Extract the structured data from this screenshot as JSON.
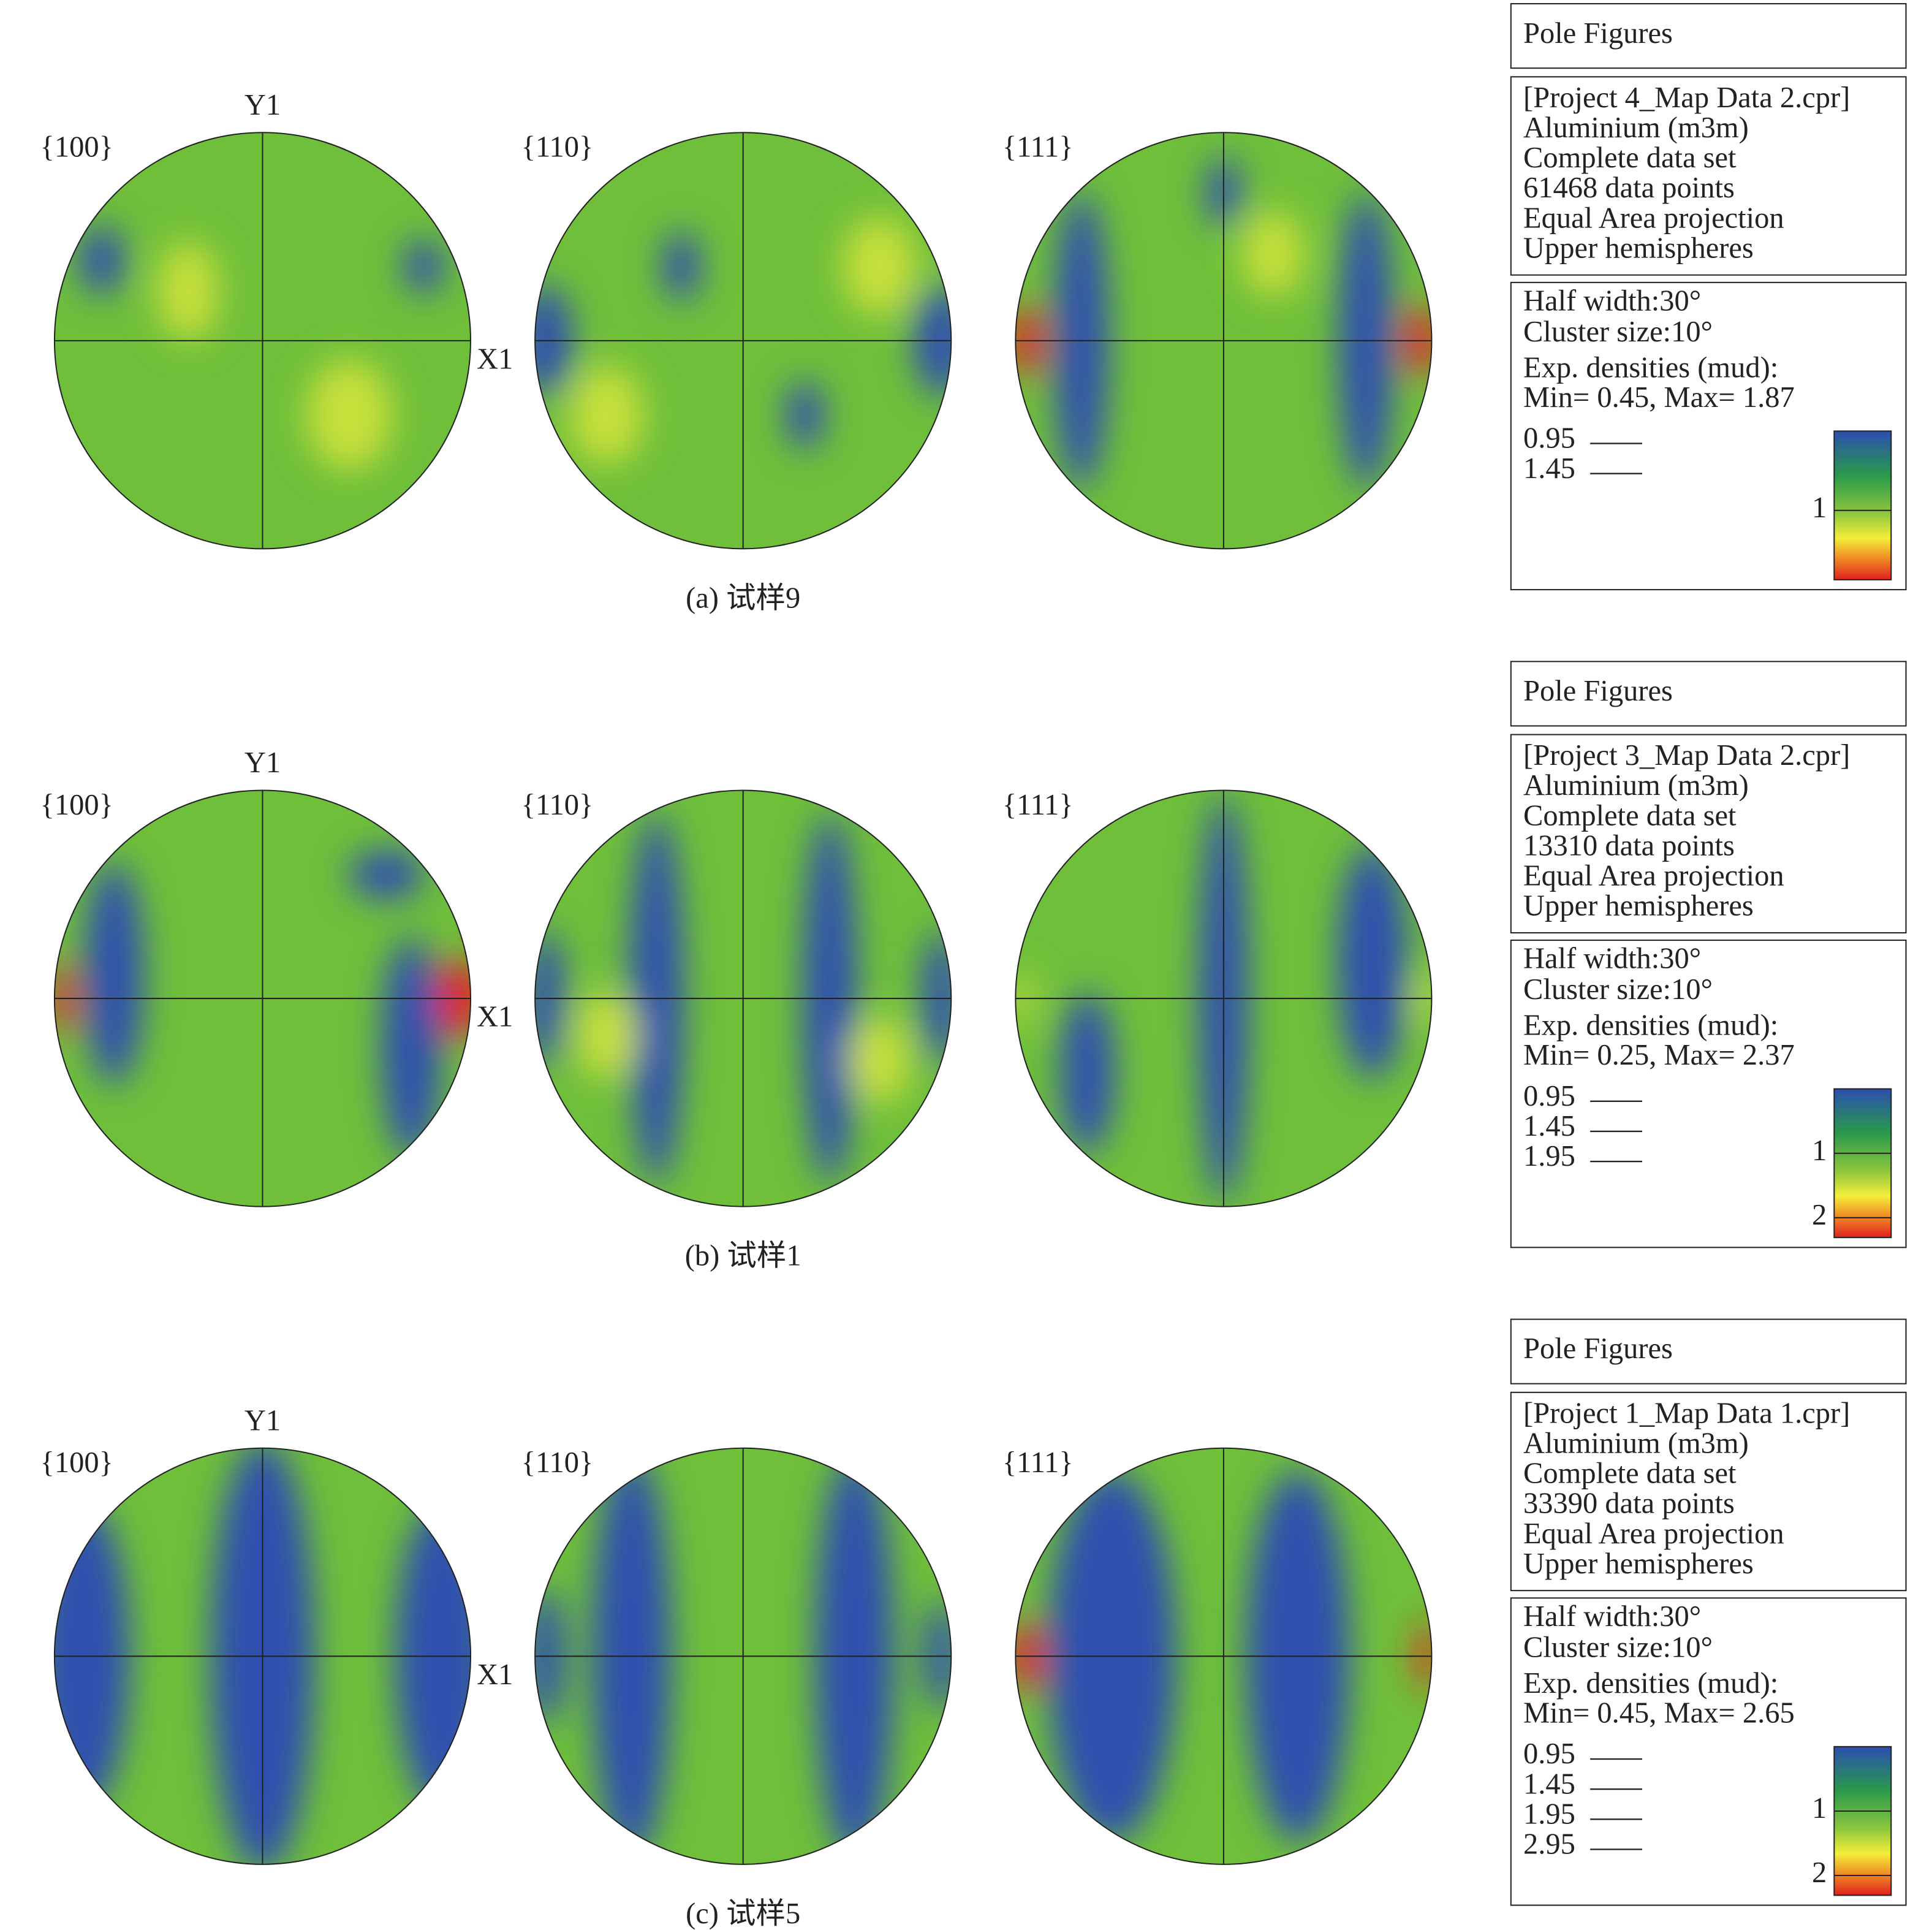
{
  "panels": [
    {
      "caption": "(a) 试样9",
      "figures": [
        "{100}",
        "{110}",
        "{111}"
      ],
      "y_axis": "Y1",
      "x_axis": "X1",
      "legend": {
        "title": "Pole Figures",
        "info": [
          "[Project 4_Map Data 2.cpr]",
          "Aluminium (m3m)",
          "Complete data set",
          "61468 data points",
          "Equal Area projection",
          "Upper hemispheres"
        ],
        "params": [
          "Half width:30°",
          "Cluster size:10°",
          "Exp. densities (mud):",
          "Min= 0.45, Max= 1.87"
        ],
        "contours": [
          "0.95",
          "1.45"
        ],
        "colorbar_ticks": [
          "1"
        ]
      }
    },
    {
      "caption": "(b) 试样1",
      "figures": [
        "{100}",
        "{110}",
        "{111}"
      ],
      "y_axis": "Y1",
      "x_axis": "X1",
      "legend": {
        "title": "Pole Figures",
        "info": [
          "[Project 3_Map Data 2.cpr]",
          "Aluminium (m3m)",
          "Complete data set",
          "13310 data points",
          "Equal Area projection",
          "Upper hemispheres"
        ],
        "params": [
          "Half width:30°",
          "Cluster size:10°",
          "Exp. densities (mud):",
          "Min= 0.25, Max= 2.37"
        ],
        "contours": [
          "0.95",
          "1.45",
          "1.95"
        ],
        "colorbar_ticks": [
          "1",
          "2"
        ]
      }
    },
    {
      "caption": "(c) 试样5",
      "figures": [
        "{100}",
        "{110}",
        "{111}"
      ],
      "y_axis": "Y1",
      "x_axis": "X1",
      "legend": {
        "title": "Pole Figures",
        "info": [
          "[Project 1_Map Data 1.cpr]",
          "Aluminium (m3m)",
          "Complete data set",
          "33390 data points",
          "Equal Area projection",
          "Upper hemispheres"
        ],
        "params": [
          "Half width:30°",
          "Cluster size:10°",
          "Exp. densities (mud):",
          "Min= 0.45, Max= 2.65"
        ],
        "contours": [
          "0.95",
          "1.45",
          "1.95",
          "2.95"
        ],
        "colorbar_ticks": [
          "1",
          "2"
        ]
      }
    }
  ]
}
